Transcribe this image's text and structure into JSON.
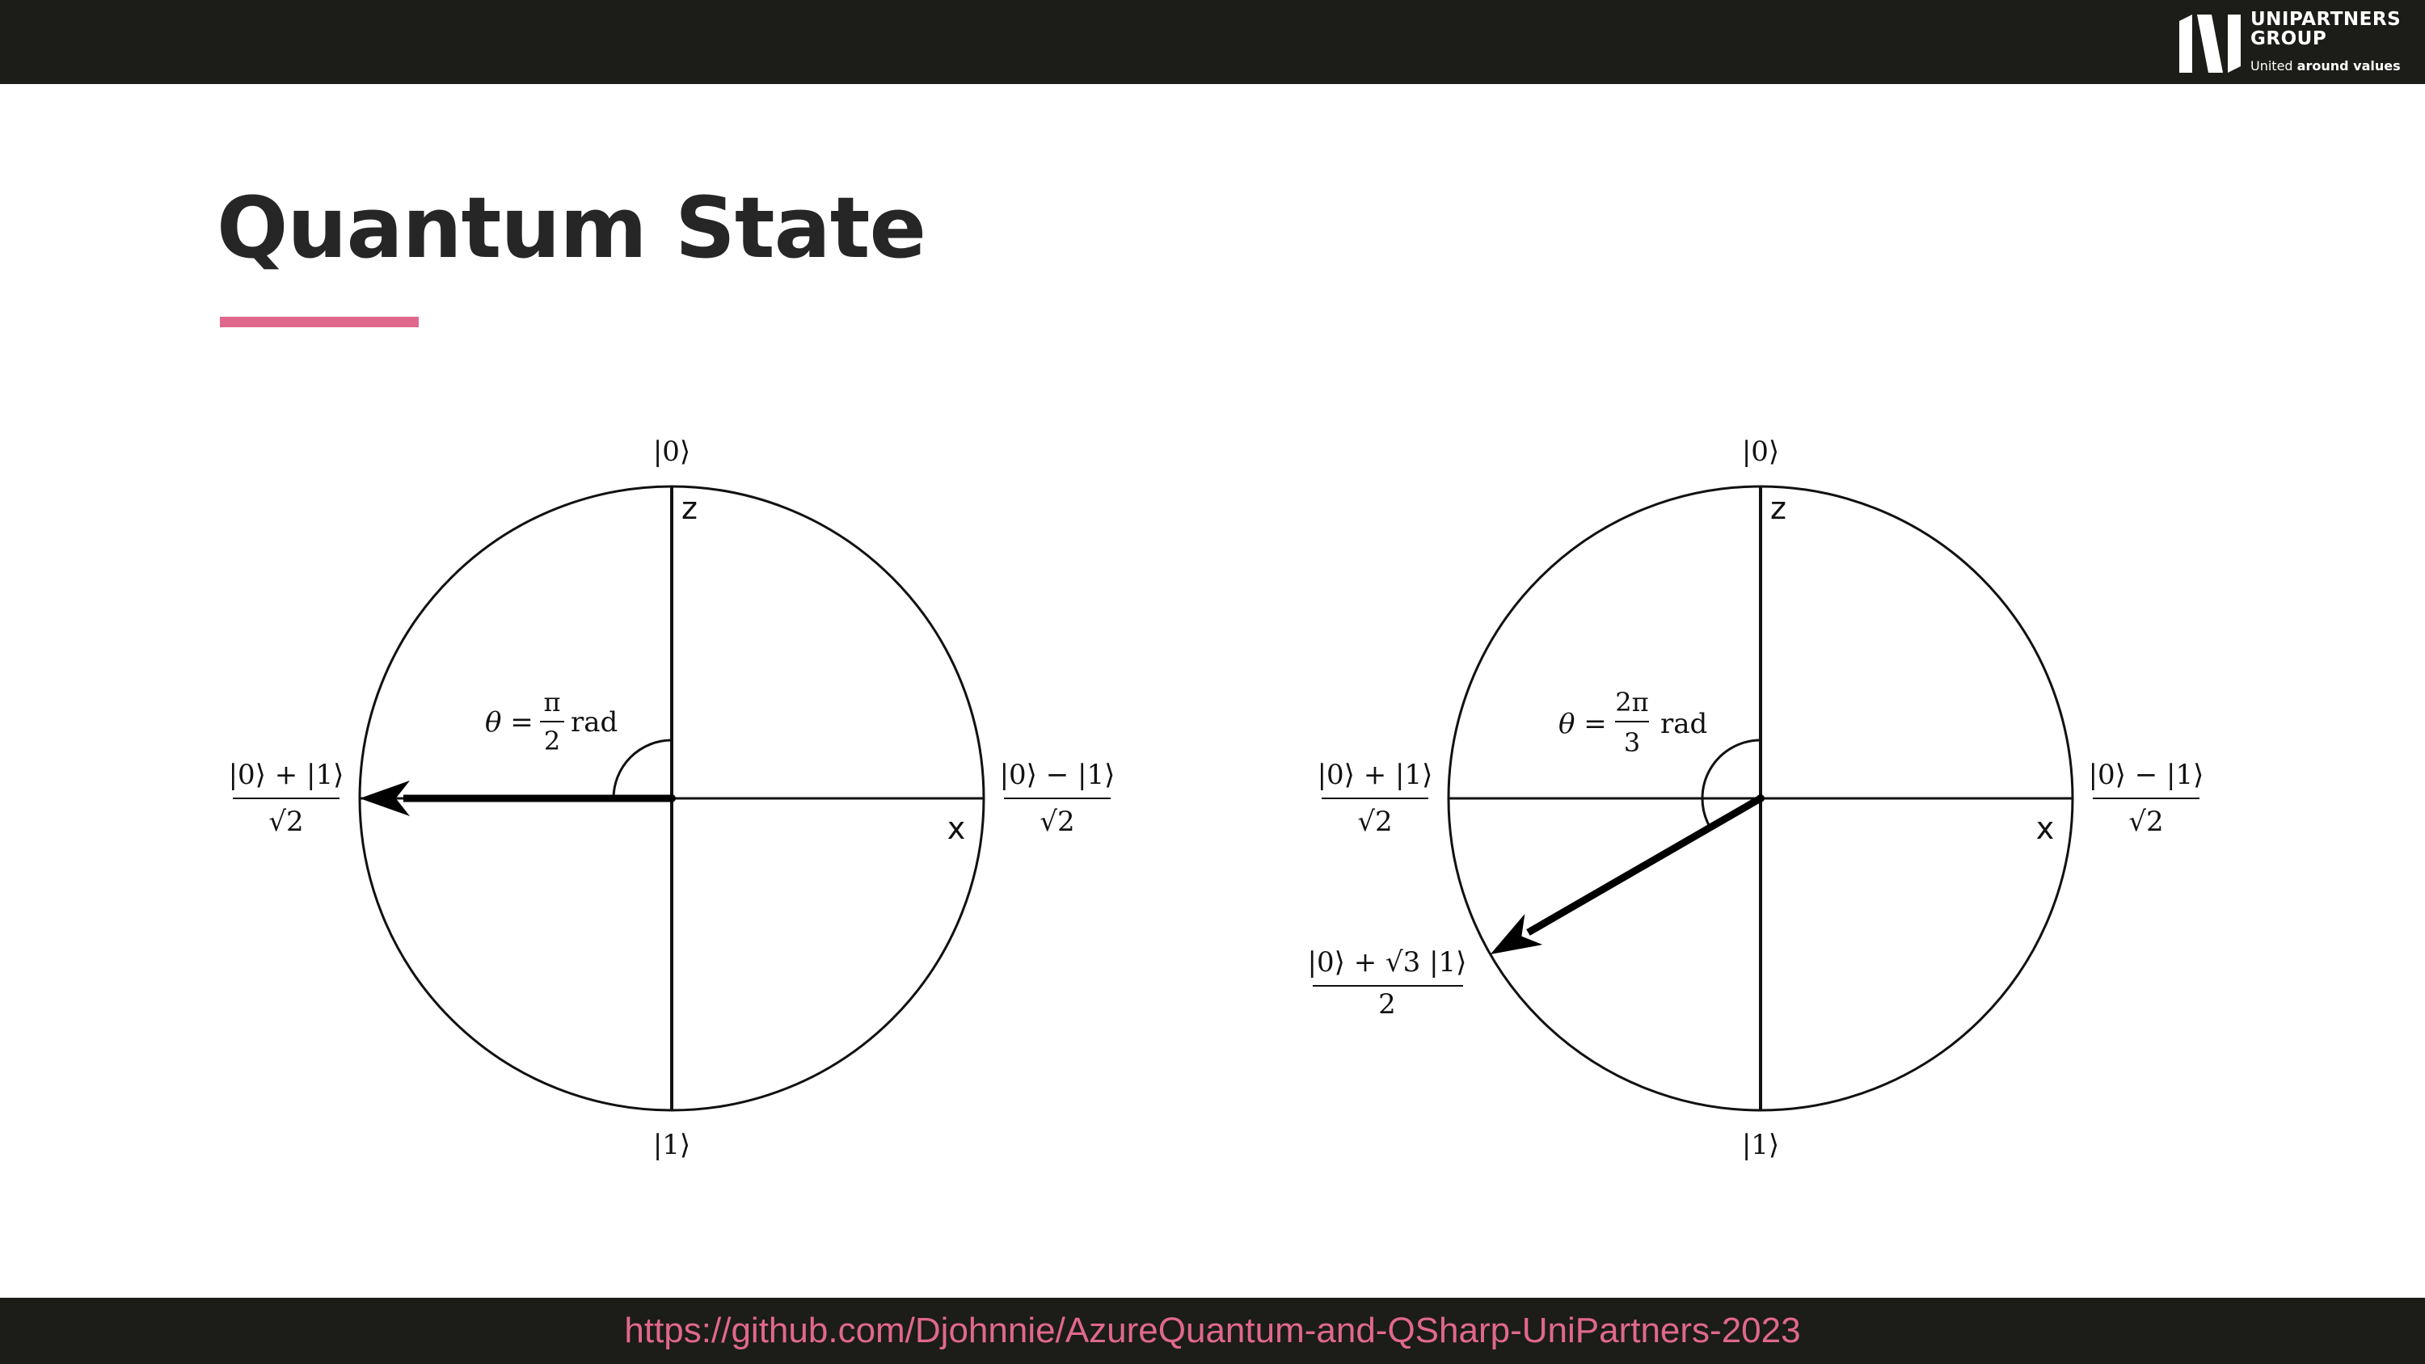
{
  "header": {
    "logo_line1": "UNIPARTNERS",
    "logo_line2": "GROUP",
    "tagline_part1": "United ",
    "tagline_part2": "around values"
  },
  "slide": {
    "title": "Quantum State",
    "accent_color": "#e0688c"
  },
  "diagrams": [
    {
      "ket_top": "|0⟩",
      "ket_bottom": "|1⟩",
      "axis_z": "z",
      "axis_x": "x",
      "left_num": "|0⟩ + |1⟩",
      "left_den": "√2",
      "right_num": "|0⟩ − |1⟩",
      "right_den": "√2",
      "theta_prefix": "θ =",
      "theta_num": "π",
      "theta_den": "2",
      "theta_unit": "rad",
      "theta_rad": 1.5708
    },
    {
      "ket_top": "|0⟩",
      "ket_bottom": "|1⟩",
      "axis_z": "z",
      "axis_x": "x",
      "left_num": "|0⟩ + |1⟩",
      "left_den": "√2",
      "right_num": "|0⟩ − |1⟩",
      "right_den": "√2",
      "theta_prefix": "θ =",
      "theta_num": "2π",
      "theta_den": "3",
      "theta_unit": "rad",
      "theta_rad": 2.0944,
      "state_num": "|0⟩ + √3 |1⟩",
      "state_den": "2"
    }
  ],
  "footer": {
    "link": "https://github.com/Djohnnie/AzureQuantum-and-QSharp-UniPartners-2023"
  }
}
